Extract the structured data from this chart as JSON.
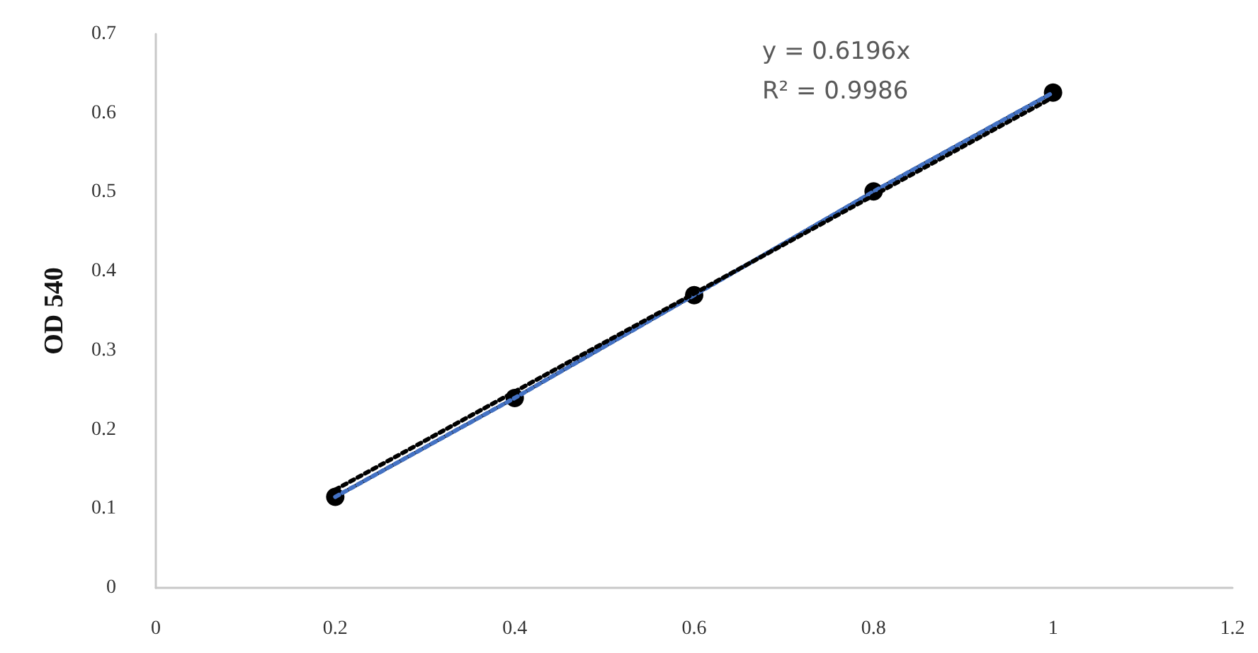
{
  "chart_data": {
    "type": "line",
    "ylabel": "OD 540",
    "xlim": [
      0,
      1.2
    ],
    "xticks": [
      0,
      0.2,
      0.4,
      0.6,
      0.8,
      1,
      1.2
    ],
    "ylim": [
      0,
      0.7
    ],
    "yticks": [
      0,
      0.1,
      0.2,
      0.3,
      0.4,
      0.5,
      0.6,
      0.7
    ],
    "grid": false,
    "marker": "circle",
    "line_style": "solid",
    "series": [
      {
        "color": "#000000",
        "x": [
          0.2,
          0.4,
          0.6,
          0.8,
          1
        ],
        "values": [
          0.115,
          0.24,
          0.37,
          0.501,
          0.626
        ]
      },
      {
        "color": "#4472c4",
        "x": [
          0.2,
          0.4,
          0.6,
          0.8,
          1
        ],
        "values": [
          0.115,
          0.24,
          0.37,
          0.501,
          0.626
        ],
        "marker": "none",
        "line_style": "dotted"
      },
      {
        "color": "#000000",
        "x": [
          0.2,
          1
        ],
        "values": [
          0.124,
          0.62
        ],
        "marker": "none",
        "line_style": "dotted"
      }
    ],
    "annotations": [
      "y = 0.6196x",
      "R² = 0.9986"
    ]
  }
}
